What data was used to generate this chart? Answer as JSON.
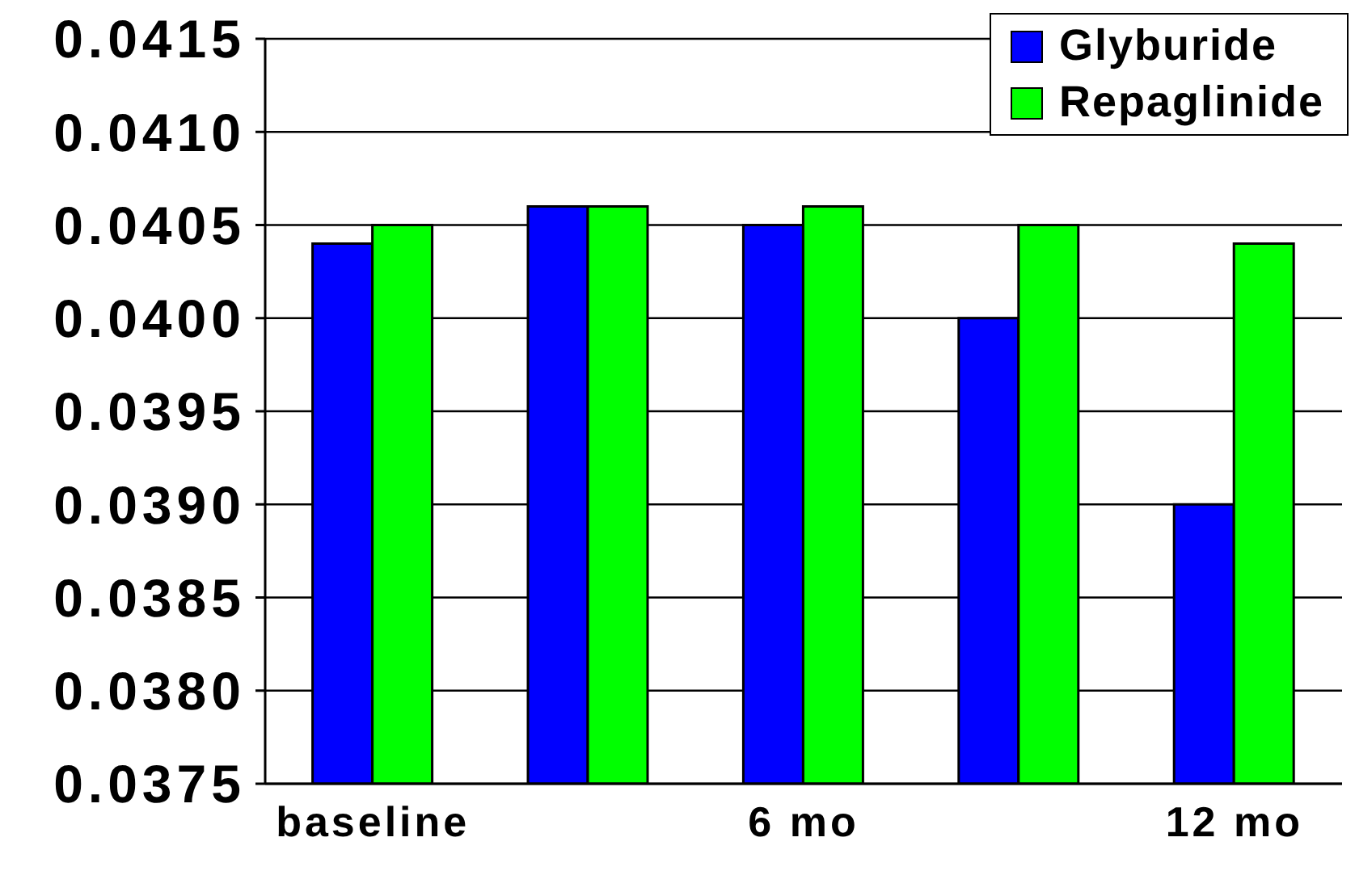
{
  "chart_data": {
    "type": "bar",
    "categories": [
      "baseline",
      null,
      "6 mo",
      null,
      "12 mo"
    ],
    "series": [
      {
        "name": "Glyburide",
        "color": "#0000ff",
        "values": [
          0.0404,
          0.0406,
          0.0405,
          0.04,
          0.039
        ]
      },
      {
        "name": "Repaglinide",
        "color": "#00ff00",
        "values": [
          0.0405,
          0.0406,
          0.0406,
          0.0405,
          0.0404
        ]
      }
    ],
    "ylim": [
      0.0375,
      0.0415
    ],
    "yticks": [
      0.0375,
      {
        "value": 0.038,
        "label": "0.0380"
      },
      0.0385,
      {
        "value": 0.039,
        "label": "0.0390"
      },
      0.0395,
      {
        "value": 0.04,
        "label": "0.0400"
      },
      0.0405,
      {
        "value": 0.041,
        "label": "0.0410"
      },
      0.0415
    ],
    "grid": "y",
    "legend": "top right"
  }
}
